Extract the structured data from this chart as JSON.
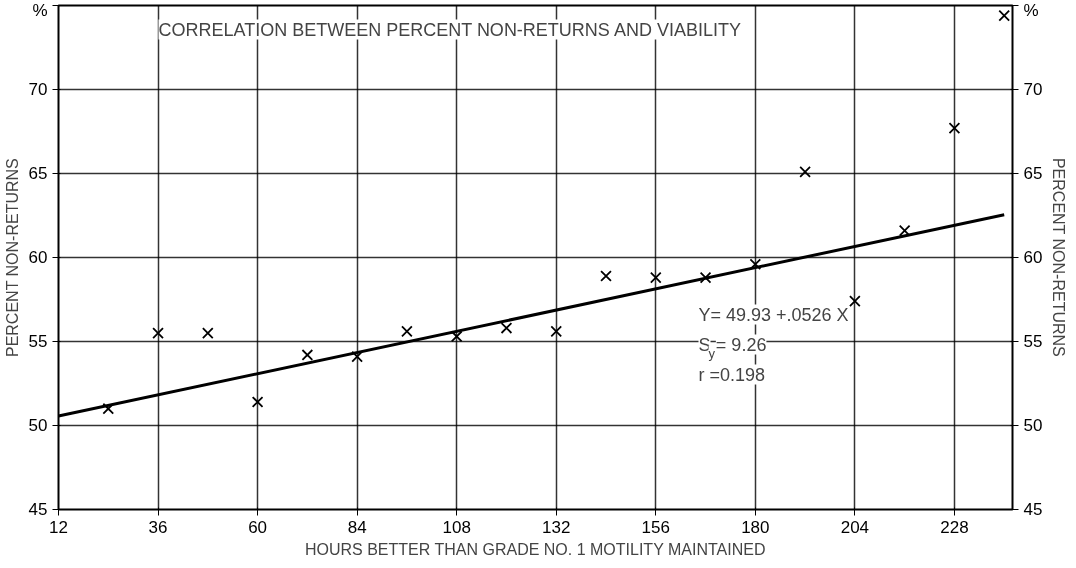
{
  "chart_data": {
    "type": "scatter",
    "title": "CORRELATION BETWEEN PERCENT NON-RETURNS AND VIABILITY",
    "xlabel": "HOURS BETTER THAN GRADE NO. 1 MOTILITY MAINTAINED",
    "ylabel": "PERCENT NON-RETURNS",
    "y2label": "PERCENT NON-RETURNS",
    "xlim": [
      12,
      242
    ],
    "ylim": [
      45,
      75
    ],
    "y2lim": [
      45,
      75
    ],
    "xticks": [
      12,
      36,
      60,
      84,
      108,
      132,
      156,
      180,
      204,
      228
    ],
    "yticks": [
      45,
      50,
      55,
      60,
      65,
      70,
      {
        "value": 75,
        "label": "%"
      }
    ],
    "y2ticks": [
      45,
      50,
      55,
      60,
      65,
      70,
      {
        "value": 75,
        "label": "%"
      }
    ],
    "grid": true,
    "marker": "cross",
    "series": [
      {
        "color": "#000000",
        "x": [
          24,
          36,
          48,
          60,
          72,
          84,
          96,
          108,
          120,
          132,
          144,
          156,
          168,
          180,
          192,
          204,
          216,
          228,
          240
        ],
        "values": [
          51.0,
          55.5,
          55.5,
          51.4,
          54.2,
          54.1,
          55.6,
          55.3,
          55.8,
          55.6,
          58.9,
          58.8,
          58.8,
          59.6,
          65.1,
          57.4,
          61.6,
          67.7,
          74.4
        ]
      },
      {
        "type": "line",
        "marker": "none",
        "color": "#000000",
        "x": [
          12,
          240
        ],
        "values": [
          50.56,
          62.55
        ]
      }
    ],
    "annotations": [
      "Y= 49.93 +.0526 X",
      "S$_{y}$= 9.26",
      "r =0.198"
    ]
  }
}
